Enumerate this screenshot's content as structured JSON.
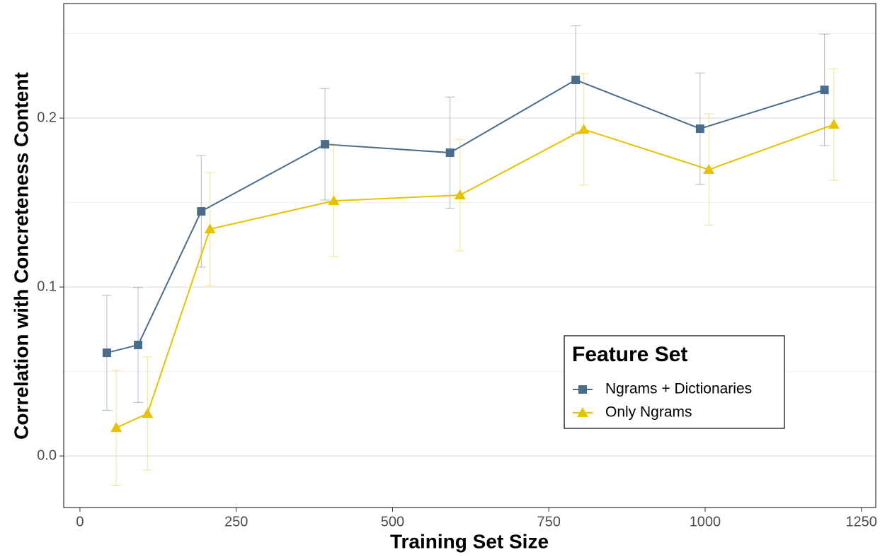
{
  "chart_data": {
    "type": "line",
    "x_label": "Training Set Size",
    "y_label": "Correlation with Concreteness Content",
    "legend_title": "Feature Set",
    "xlim": [
      -26,
      1273
    ],
    "ylim": [
      -0.0305,
      0.2678
    ],
    "xticks": [
      0,
      250,
      500,
      750,
      1000,
      1250
    ],
    "yticks": [
      {
        "value": 0,
        "label": "0.0"
      },
      {
        "value": 0.1,
        "label": "0.1"
      },
      {
        "value": 0.2,
        "label": "0.2"
      }
    ],
    "yminor": [
      0.05,
      0.15,
      0.25
    ],
    "grid": true,
    "series": [
      {
        "name": "Ngrams + Dictionaries",
        "color": "#4a6d8c",
        "marker": "square",
        "x": [
          43,
          93,
          194,
          392,
          592,
          793,
          992,
          1191
        ],
        "values": [
          0.0611,
          0.0657,
          0.1448,
          0.1845,
          0.1795,
          0.2226,
          0.1937,
          0.2167
        ],
        "errors": [
          0.034,
          0.034,
          0.033,
          0.033,
          0.033,
          0.032,
          0.033,
          0.033
        ]
      },
      {
        "name": "Only Ngrams",
        "color": "#e8c100",
        "marker": "triangle",
        "x": [
          58,
          108,
          208,
          406,
          608,
          806,
          1006,
          1206
        ],
        "values": [
          0.0167,
          0.0251,
          0.1343,
          0.151,
          0.1544,
          0.1933,
          0.1695,
          0.1962
        ],
        "errors": [
          0.034,
          0.0335,
          0.0335,
          0.033,
          0.033,
          0.033,
          0.033,
          0.033
        ]
      }
    ]
  }
}
